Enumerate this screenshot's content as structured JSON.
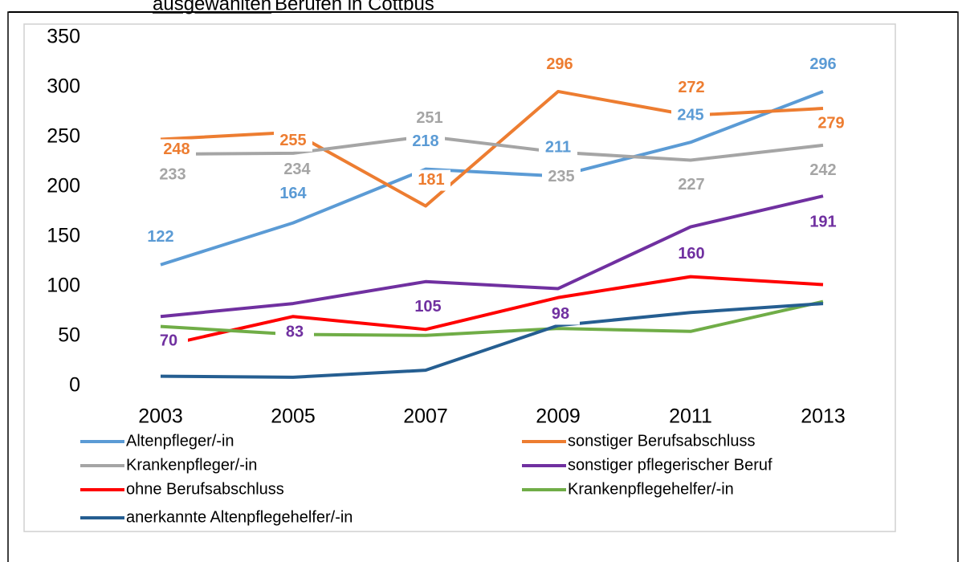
{
  "chart_data": {
    "type": "line",
    "title_underlined": "ausgewählten",
    "title": "Berufen in Cottbus",
    "x": [
      "2003",
      "2005",
      "2007",
      "2009",
      "2011",
      "2013"
    ],
    "ylim": [
      0,
      350
    ],
    "yticks": [
      0,
      50,
      100,
      150,
      200,
      250,
      300,
      350
    ],
    "grid": false,
    "series": [
      {
        "name": "Altenpfleger/-in",
        "color": "#5b9bd5",
        "values": [
          122,
          164,
          218,
          211,
          245,
          296
        ],
        "labels": true
      },
      {
        "name": "sonstiger Berufsabschluss",
        "color": "#ed7d31",
        "values": [
          248,
          255,
          181,
          296,
          272,
          279
        ],
        "labels": true
      },
      {
        "name": "Krankenpfleger/-in",
        "color": "#a5a5a5",
        "values": [
          233,
          234,
          251,
          235,
          227,
          242
        ],
        "labels": true
      },
      {
        "name": "sonstiger pflegerischer Beruf",
        "color": "#7030a0",
        "values": [
          70,
          83,
          105,
          98,
          160,
          191
        ],
        "labels": true
      },
      {
        "name": "ohne Berufsabschluss",
        "color": "#ff0000",
        "values": [
          40,
          70,
          57,
          89,
          110,
          102
        ],
        "labels": false
      },
      {
        "name": "Krankenpflegehelfer/-in",
        "color": "#70ad47",
        "values": [
          60,
          52,
          51,
          58,
          55,
          85
        ],
        "labels": false
      },
      {
        "name": "anerkannte Altenpflegehelfer/-in",
        "color": "#255e91",
        "values": [
          10,
          9,
          16,
          61,
          74,
          83
        ],
        "labels": false
      }
    ]
  }
}
